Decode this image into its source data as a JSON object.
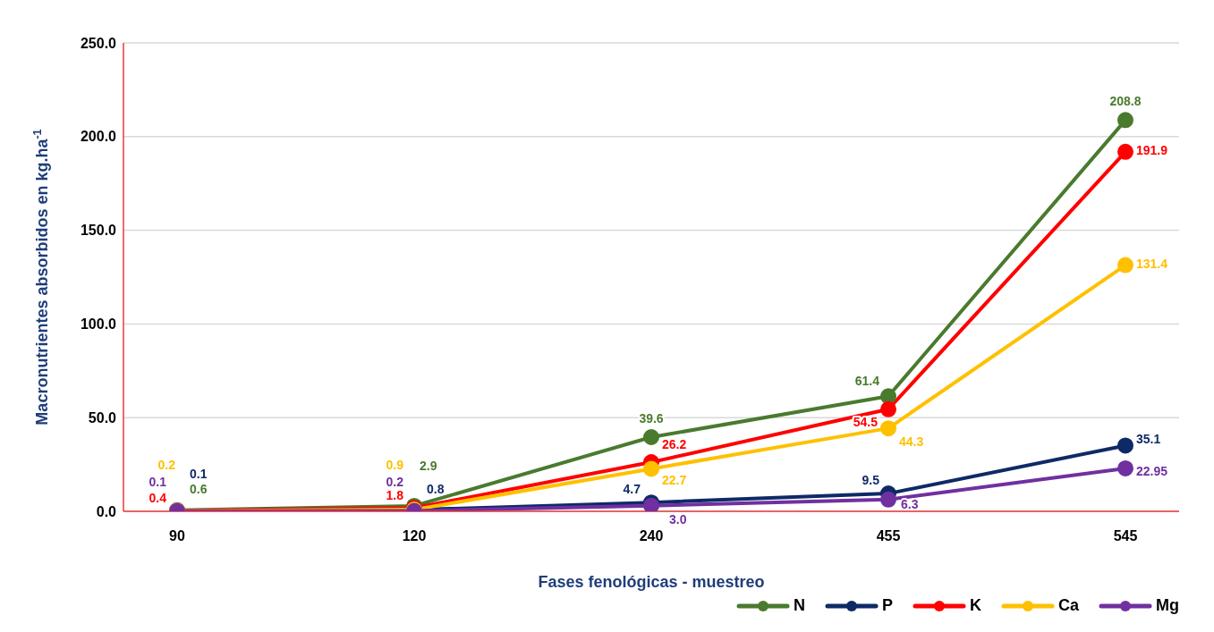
{
  "chart_data": {
    "type": "line",
    "xlabel": "Fases fenológicas - muestreo",
    "ylabel": "Macronutrientes absorbidos en kg.ha$^{-1}$",
    "categories": [
      "90",
      "120",
      "240",
      "455",
      "545"
    ],
    "series": [
      {
        "name": "N",
        "color": "#4a7a2e",
        "values": [
          0.6,
          2.9,
          39.6,
          61.4,
          208.8
        ],
        "value_labels": [
          "0.6",
          "2.9",
          "39.6",
          "61.4",
          "208.8"
        ]
      },
      {
        "name": "P",
        "color": "#0e2a66",
        "values": [
          0.1,
          0.8,
          4.7,
          9.5,
          35.1
        ],
        "value_labels": [
          "0.1",
          "0.8",
          "4.7",
          "9.5",
          "35.1"
        ]
      },
      {
        "name": "K",
        "color": "#ff0000",
        "values": [
          0.4,
          1.8,
          26.2,
          54.5,
          191.9
        ],
        "value_labels": [
          "0.4",
          "1.8",
          "26.2",
          "54.5",
          "191.9"
        ]
      },
      {
        "name": "Ca",
        "color": "#ffc000",
        "values": [
          0.2,
          0.9,
          22.7,
          44.3,
          131.4
        ],
        "value_labels": [
          "0.2",
          "0.9",
          "22.7",
          "44.3",
          "131.4"
        ]
      },
      {
        "name": "Mg",
        "color": "#7030a0",
        "values": [
          0.1,
          0.2,
          3.0,
          6.3,
          22.95
        ],
        "value_labels": [
          "0.1",
          "0.2",
          "3.0",
          "6.3",
          "22.95"
        ]
      }
    ],
    "ylim": [
      0,
      250
    ],
    "yticks": [
      {
        "value": 0,
        "label": "0.0"
      },
      {
        "value": 50,
        "label": "50.0"
      },
      {
        "value": 100,
        "label": "100.0"
      },
      {
        "value": 150,
        "label": "150.0"
      },
      {
        "value": 200,
        "label": "200.0"
      },
      {
        "value": 250,
        "label": "250.0"
      }
    ],
    "grid": "y",
    "legend": "bottom right",
    "marker": "circle",
    "line_style": "solid"
  }
}
